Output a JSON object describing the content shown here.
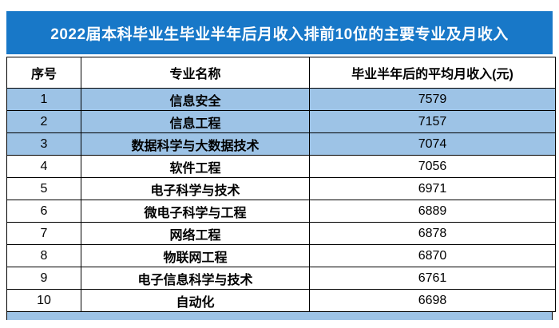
{
  "banner": {
    "title": "2022届本科毕业生毕业半年后月收入排前10位的主要专业及月收入"
  },
  "colors": {
    "banner_bg": "#1878c8",
    "banner_text": "#ffffff",
    "highlight_row_bg": "#9dc3e6",
    "border": "#000000"
  },
  "chart_data": {
    "type": "table",
    "title": "2022届本科毕业生毕业半年后月收入排前10位的主要专业及月收入",
    "columns": [
      "序号",
      "专业名称",
      "毕业半年后的平均月收入(元)"
    ],
    "rows": [
      [
        "1",
        "信息安全",
        "7579"
      ],
      [
        "2",
        "信息工程",
        "7157"
      ],
      [
        "3",
        "数据科学与大数据技术",
        "7074"
      ],
      [
        "4",
        "软件工程",
        "7056"
      ],
      [
        "5",
        "电子科学与技术",
        "6971"
      ],
      [
        "6",
        "微电子科学与工程",
        "6889"
      ],
      [
        "7",
        "网络工程",
        "6878"
      ],
      [
        "8",
        "物联网工程",
        "6870"
      ],
      [
        "9",
        "电子信息科学与技术",
        "6761"
      ],
      [
        "10",
        "自动化",
        "6698"
      ]
    ],
    "highlight_rows": [
      1,
      2,
      3
    ],
    "legend_position": "none",
    "grid": true
  }
}
